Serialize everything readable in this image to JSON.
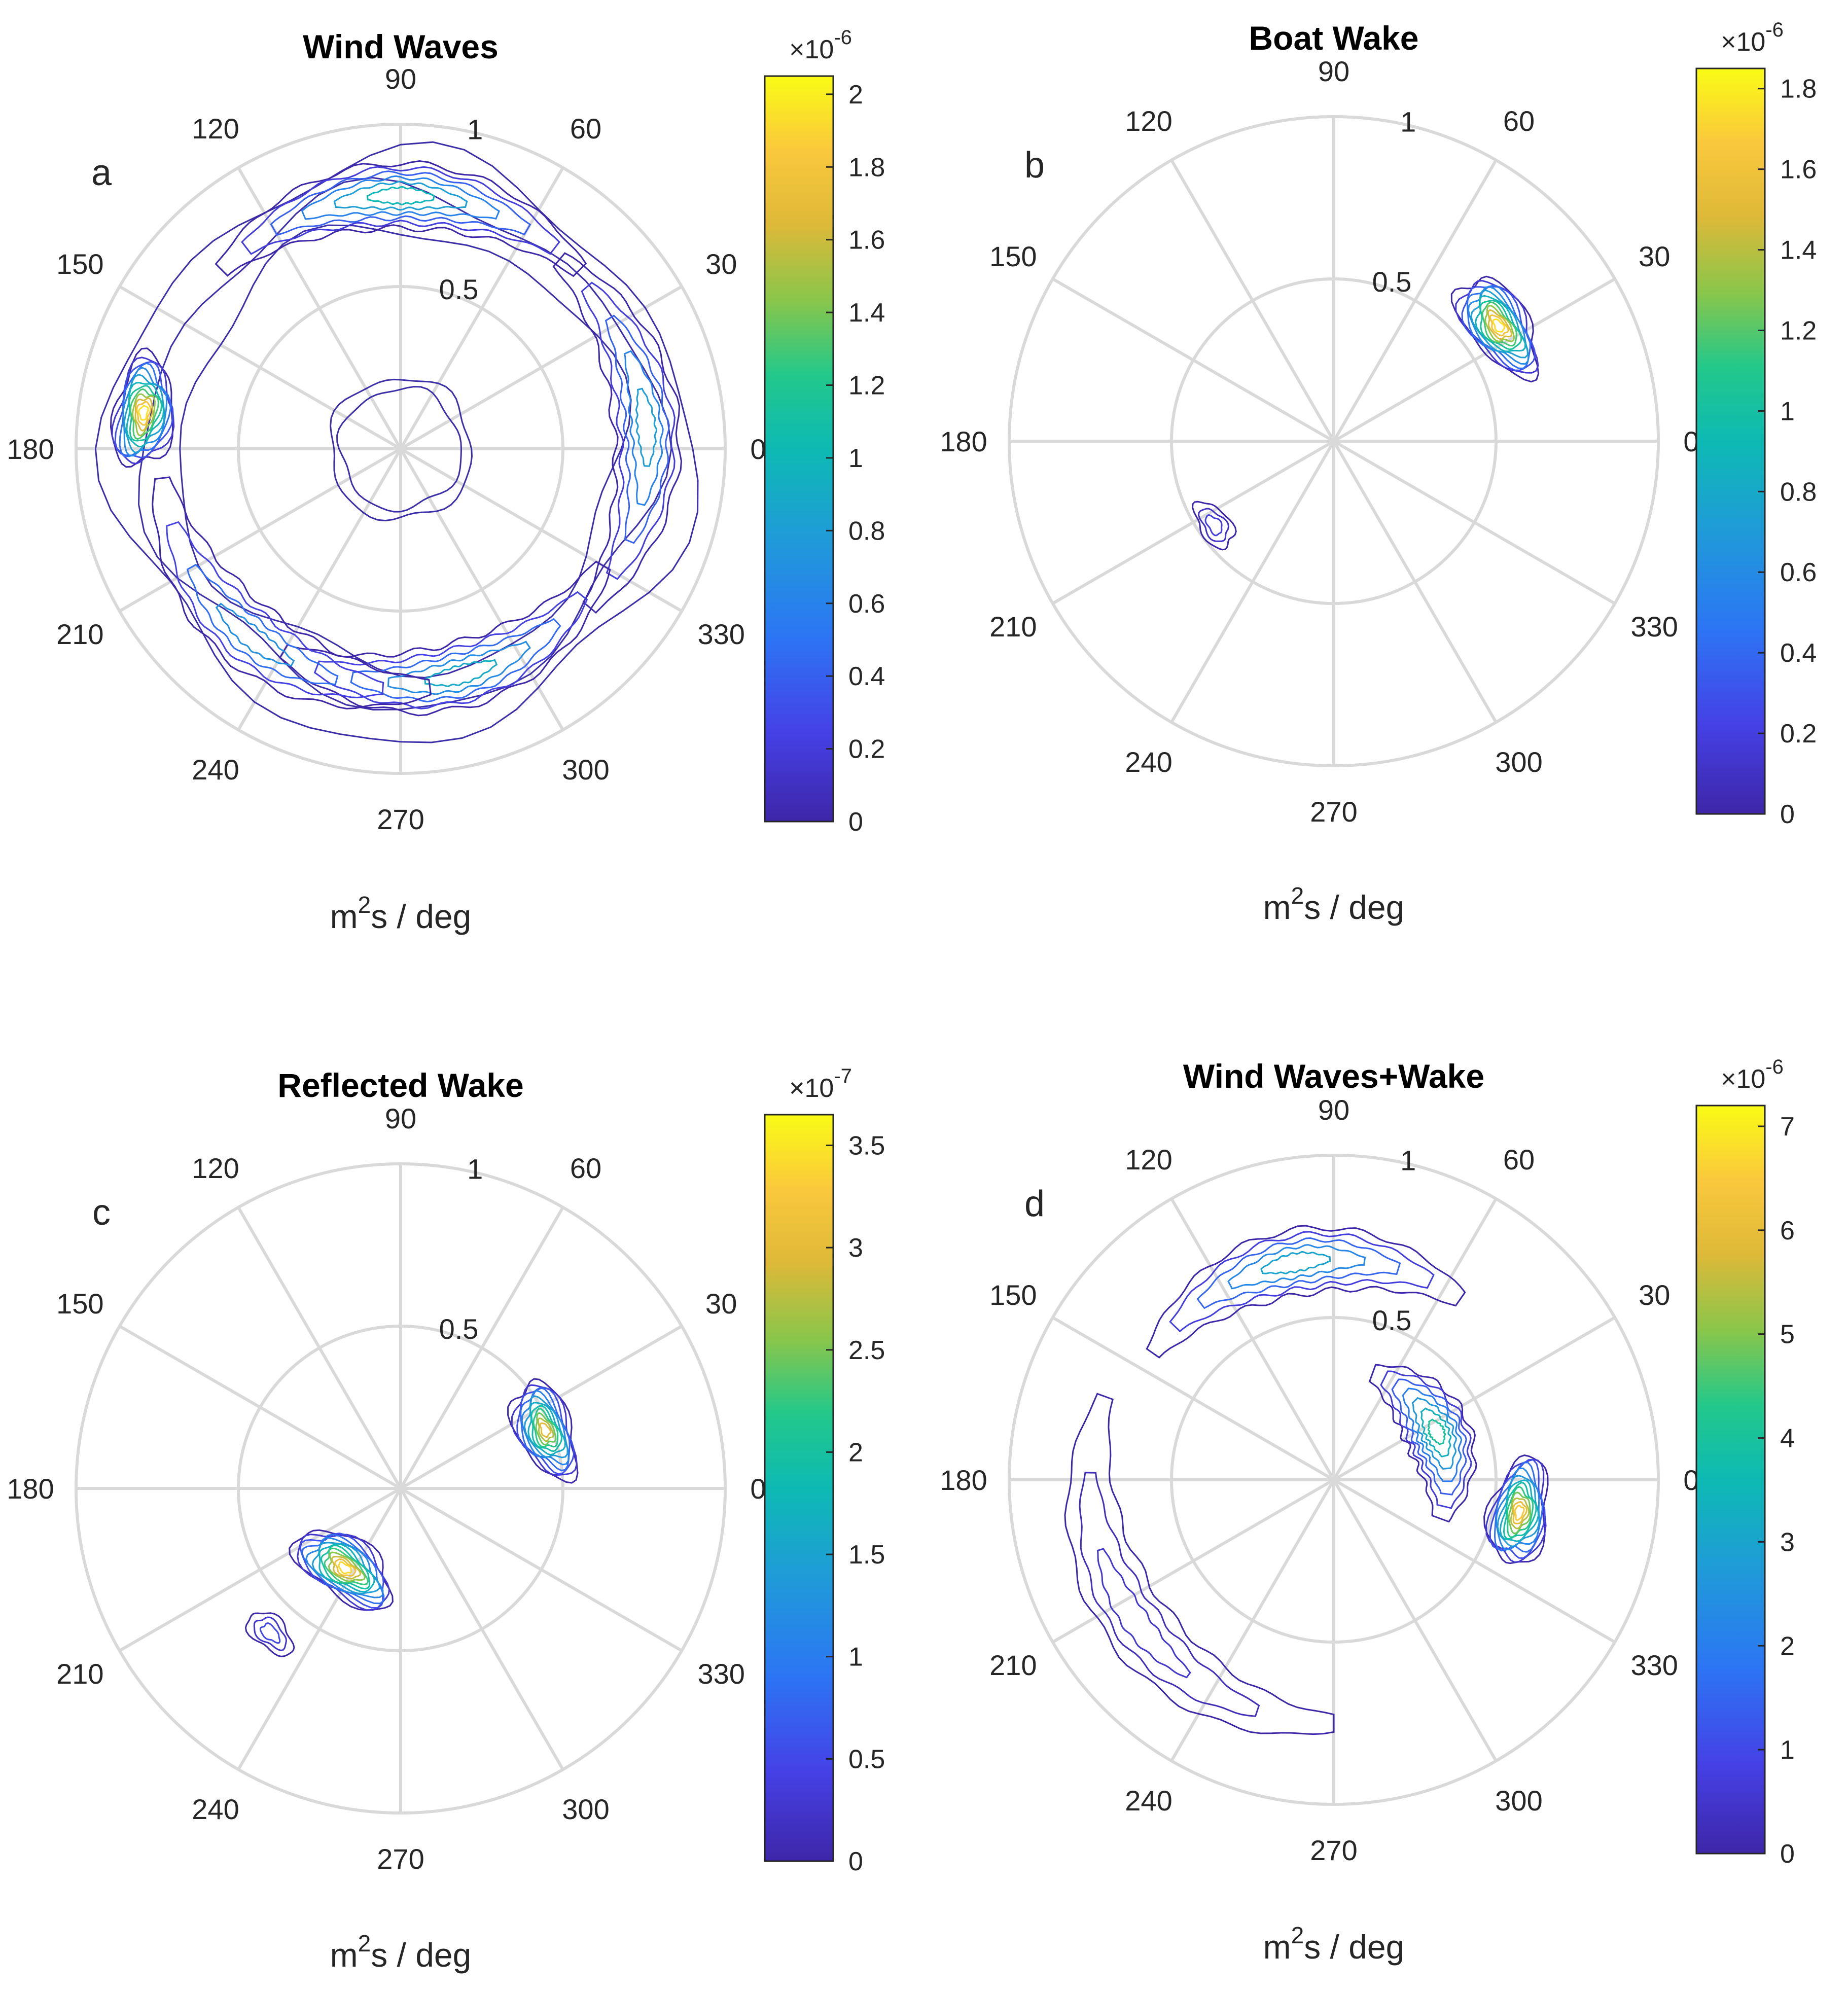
{
  "chart_data": [
    {
      "type": "polar-contour",
      "panel_label": "a",
      "title": "Wind Waves",
      "angle_ticks": [
        "0",
        "30",
        "60",
        "90",
        "120",
        "150",
        "180",
        "210",
        "240",
        "270",
        "300",
        "330"
      ],
      "radial_ticks": [
        "0.5",
        "1"
      ],
      "radial_values": [
        0.5,
        1
      ],
      "rlim": [
        0,
        1
      ],
      "colorbar": {
        "exponent": "×10^-6",
        "exp_base": "×10",
        "exp_power": "-6",
        "ticks": [
          "0",
          "0.2",
          "0.4",
          "0.6",
          "0.8",
          "1",
          "1.2",
          "1.4",
          "1.6",
          "1.8",
          "2"
        ],
        "tick_values": [
          0,
          0.2,
          0.4,
          0.6,
          0.8,
          1.0,
          1.2,
          1.4,
          1.6,
          1.8,
          2.0
        ],
        "range": [
          0,
          2.05
        ]
      },
      "unit_label": {
        "base": "m",
        "sup": "2",
        "rest": "s / deg"
      },
      "features": [
        {
          "name": "outer-ring",
          "r_inner": 0.68,
          "r_outer": 0.88,
          "level": 0.15
        },
        {
          "name": "north-band",
          "theta": 90,
          "r": 0.78,
          "peak": 1.0
        },
        {
          "name": "west-peak",
          "theta": 172,
          "r": 0.8,
          "peak": 1.95
        },
        {
          "name": "east-band",
          "theta": 5,
          "r": 0.76,
          "peak": 0.8
        },
        {
          "name": "south-band",
          "theta": 285,
          "r": 0.72,
          "peak": 0.9
        },
        {
          "name": "southwest-band",
          "theta": 232,
          "r": 0.74,
          "peak": 0.7
        },
        {
          "name": "center-ring",
          "r": 0.22,
          "level": 0.2
        }
      ]
    },
    {
      "type": "polar-contour",
      "panel_label": "b",
      "title": "Boat Wake",
      "angle_ticks": [
        "0",
        "30",
        "60",
        "90",
        "120",
        "150",
        "180",
        "210",
        "240",
        "270",
        "300",
        "330"
      ],
      "radial_ticks": [
        "0.5",
        "1"
      ],
      "radial_values": [
        0.5,
        1
      ],
      "rlim": [
        0,
        1
      ],
      "colorbar": {
        "exponent": "×10^-6",
        "exp_base": "×10",
        "exp_power": "-6",
        "ticks": [
          "0",
          "0.2",
          "0.4",
          "0.6",
          "0.8",
          "1",
          "1.2",
          "1.4",
          "1.6",
          "1.8"
        ],
        "tick_values": [
          0,
          0.2,
          0.4,
          0.6,
          0.8,
          1.0,
          1.2,
          1.4,
          1.6,
          1.8
        ],
        "range": [
          0,
          1.85
        ]
      },
      "unit_label": {
        "base": "m",
        "sup": "2",
        "rest": "s / deg"
      },
      "features": [
        {
          "name": "northeast-peak",
          "theta": 35,
          "r": 0.62,
          "peak": 1.75
        },
        {
          "name": "southwest-tail",
          "theta": 215,
          "r": 0.45,
          "peak": 0.2
        }
      ]
    },
    {
      "type": "polar-contour",
      "panel_label": "c",
      "title": "Reflected Wake",
      "angle_ticks": [
        "0",
        "30",
        "60",
        "90",
        "120",
        "150",
        "180",
        "210",
        "240",
        "270",
        "300",
        "330"
      ],
      "radial_ticks": [
        "0.5",
        "1"
      ],
      "radial_values": [
        0.5,
        1
      ],
      "rlim": [
        0,
        1
      ],
      "colorbar": {
        "exponent": "×10^-7",
        "exp_base": "×10",
        "exp_power": "-7",
        "ticks": [
          "0",
          "0.5",
          "1",
          "1.5",
          "2",
          "2.5",
          "3",
          "3.5"
        ],
        "tick_values": [
          0,
          0.5,
          1.0,
          1.5,
          2.0,
          2.5,
          3.0,
          3.5
        ],
        "range": [
          0,
          3.65
        ]
      },
      "unit_label": {
        "base": "m",
        "sup": "2",
        "rest": "s / deg"
      },
      "features": [
        {
          "name": "northeast-peak",
          "theta": 22,
          "r": 0.48,
          "peak": 3.0
        },
        {
          "name": "southwest-peak",
          "theta": 235,
          "r": 0.3,
          "peak": 3.4
        },
        {
          "name": "southwest-low",
          "theta": 228,
          "r": 0.6,
          "peak": 0.5
        }
      ]
    },
    {
      "type": "polar-contour",
      "panel_label": "d",
      "title": "Wind Waves+Wake",
      "angle_ticks": [
        "0",
        "30",
        "60",
        "90",
        "120",
        "150",
        "180",
        "210",
        "240",
        "270",
        "300",
        "330"
      ],
      "radial_ticks": [
        "0.5",
        "1"
      ],
      "radial_values": [
        0.5,
        1
      ],
      "rlim": [
        0,
        1
      ],
      "colorbar": {
        "exponent": "×10^-6",
        "exp_base": "×10",
        "exp_power": "-6",
        "ticks": [
          "0",
          "1",
          "2",
          "3",
          "4",
          "5",
          "6",
          "7"
        ],
        "tick_values": [
          0,
          1,
          2,
          3,
          4,
          5,
          6,
          7
        ],
        "range": [
          0,
          7.2
        ]
      },
      "unit_label": {
        "base": "m",
        "sup": "2",
        "rest": "s / deg"
      },
      "features": [
        {
          "name": "north-band",
          "theta": 100,
          "r": 0.68,
          "peak": 3.0
        },
        {
          "name": "east-peak",
          "theta": 350,
          "r": 0.58,
          "peak": 6.5
        },
        {
          "name": "northeast-band",
          "theta": 25,
          "r": 0.35,
          "peak": 4.0
        },
        {
          "name": "southwest-arc",
          "theta": 215,
          "r": 0.75,
          "peak": 0.5
        }
      ]
    }
  ]
}
